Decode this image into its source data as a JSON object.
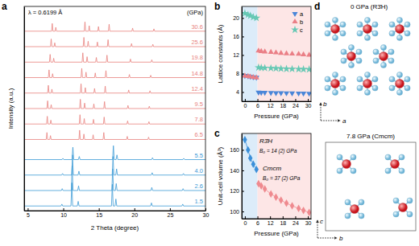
{
  "chart_data": [
    {
      "title": "a",
      "type": "line",
      "xlabel": "2 Theta (degree)",
      "ylabel": "Intensity (a.u.)",
      "xlim": [
        4.5,
        30
      ],
      "ylim": [
        0,
        13.2
      ],
      "xticks": [
        5,
        10,
        15,
        20,
        25,
        30
      ],
      "tick_labels": "x",
      "grid": false,
      "line_style": "solid",
      "annotations": [
        "λ = 0.6199 Å",
        "(GPa)"
      ],
      "series": [
        {
          "name": "1.5",
          "color": "#3c9ad6",
          "x": [
            4.5,
            9.68,
            9.8,
            9.92,
            11.08,
            11.2,
            11.32,
            11.98,
            12.1,
            12.22,
            16.78,
            16.9,
            17.02,
            17.28,
            17.4,
            17.52,
            22.28,
            22.4,
            22.52,
            26.68,
            26.8,
            26.92,
            30
          ],
          "values": [
            0.3,
            0.3,
            0.42,
            0.3,
            0.3,
            1.8,
            0.3,
            0.3,
            0.6,
            0.3,
            0.3,
            1.7,
            0.3,
            0.3,
            0.75,
            0.3,
            0.3,
            0.5,
            0.3,
            0.3,
            0.42,
            0.3,
            0.3
          ]
        },
        {
          "name": "2.6",
          "color": "#3c9ad6",
          "x": [
            4.5,
            9.73,
            9.85,
            9.97,
            11.13,
            11.25,
            11.37,
            12.03,
            12.15,
            12.27,
            16.83,
            16.95,
            17.07,
            17.33,
            17.45,
            17.57,
            22.33,
            22.45,
            22.57,
            26.73,
            26.85,
            26.97,
            30
          ],
          "values": [
            1.3,
            1.3,
            1.42,
            1.3,
            1.3,
            2.9,
            1.3,
            1.3,
            1.6,
            1.3,
            1.3,
            2.7,
            1.3,
            1.3,
            1.75,
            1.3,
            1.3,
            1.5,
            1.3,
            1.3,
            1.42,
            1.3,
            1.3
          ]
        },
        {
          "name": "4.0",
          "color": "#3c9ad6",
          "x": [
            4.5,
            9.78,
            9.9,
            10.02,
            11.18,
            11.3,
            11.42,
            12.08,
            12.2,
            12.32,
            16.88,
            17.0,
            17.12,
            17.38,
            17.5,
            17.62,
            22.38,
            22.5,
            22.62,
            26.78,
            26.9,
            27.02,
            30
          ],
          "values": [
            2.3,
            2.3,
            2.4,
            2.3,
            2.3,
            3.6,
            2.3,
            2.3,
            2.55,
            2.3,
            2.3,
            3.5,
            2.3,
            2.3,
            2.7,
            2.3,
            2.3,
            2.45,
            2.3,
            2.3,
            2.4,
            2.3,
            2.3
          ]
        },
        {
          "name": "5.5",
          "color": "#3c9ad6",
          "x": [
            4.5,
            9.83,
            9.95,
            10.07,
            11.23,
            11.35,
            11.47,
            12.13,
            12.25,
            12.37,
            16.93,
            17.05,
            17.17,
            17.43,
            17.55,
            17.67,
            22.43,
            22.55,
            22.67,
            26.83,
            26.95,
            27.07,
            30
          ],
          "values": [
            3.3,
            3.3,
            3.38,
            3.3,
            3.3,
            4.1,
            3.3,
            3.3,
            3.5,
            3.3,
            3.3,
            4.2,
            3.3,
            3.3,
            3.6,
            3.3,
            3.3,
            3.42,
            3.3,
            3.3,
            3.38,
            3.3,
            3.3
          ]
        },
        {
          "name": "6.5",
          "color": "#e8827e",
          "x": [
            4.5,
            7.6,
            7.7,
            7.8,
            8.1,
            8.2,
            8.3,
            12.2,
            12.3,
            12.4,
            12.8,
            12.9,
            13.0,
            14.1,
            14.2,
            14.3,
            15.6,
            15.7,
            15.8,
            18.9,
            19.0,
            19.1,
            21.9,
            22.0,
            22.1,
            30
          ],
          "values": [
            4.6,
            4.6,
            5.05,
            4.6,
            4.6,
            4.85,
            4.6,
            4.6,
            5.2,
            4.6,
            4.6,
            4.95,
            4.6,
            4.6,
            4.9,
            4.6,
            4.6,
            5.05,
            4.6,
            4.6,
            4.8,
            4.6,
            4.6,
            4.75,
            4.6,
            4.6
          ]
        },
        {
          "name": "7.8",
          "color": "#e8827e",
          "x": [
            4.5,
            7.65,
            7.75,
            7.85,
            8.15,
            8.25,
            8.35,
            12.25,
            12.35,
            12.45,
            12.85,
            12.95,
            13.05,
            14.15,
            14.25,
            14.35,
            15.65,
            15.75,
            15.85,
            18.95,
            19.05,
            19.15,
            21.95,
            22.05,
            22.15,
            30
          ],
          "values": [
            5.6,
            5.6,
            6.1,
            5.6,
            5.6,
            5.85,
            5.6,
            5.6,
            6.2,
            5.6,
            5.6,
            5.95,
            5.6,
            5.6,
            5.9,
            5.6,
            5.6,
            6.05,
            5.6,
            5.6,
            5.8,
            5.6,
            5.6,
            5.75,
            5.6,
            5.6
          ]
        },
        {
          "name": "9.5",
          "color": "#e8827e",
          "x": [
            4.5,
            7.7,
            7.8,
            7.9,
            8.2,
            8.3,
            8.4,
            12.3,
            12.4,
            12.5,
            12.9,
            13.0,
            13.1,
            14.2,
            14.3,
            14.4,
            15.7,
            15.8,
            15.9,
            19.0,
            19.1,
            19.2,
            22.0,
            22.1,
            22.2,
            30
          ],
          "values": [
            6.6,
            6.6,
            7.1,
            6.6,
            6.6,
            6.85,
            6.6,
            6.6,
            7.2,
            6.6,
            6.6,
            6.95,
            6.6,
            6.6,
            6.9,
            6.6,
            6.6,
            7.05,
            6.6,
            6.6,
            6.8,
            6.6,
            6.6,
            6.75,
            6.6,
            6.6
          ]
        },
        {
          "name": "12.4",
          "color": "#e8827e",
          "x": [
            4.5,
            7.8,
            7.9,
            8.0,
            8.3,
            8.4,
            8.5,
            12.4,
            12.5,
            12.6,
            13.0,
            13.1,
            13.2,
            14.3,
            14.4,
            14.5,
            15.8,
            15.9,
            16.0,
            19.1,
            19.2,
            19.3,
            22.1,
            22.2,
            22.3,
            30
          ],
          "values": [
            7.6,
            7.6,
            8.1,
            7.6,
            7.6,
            7.85,
            7.6,
            7.6,
            8.2,
            7.6,
            7.6,
            7.95,
            7.6,
            7.6,
            7.9,
            7.6,
            7.6,
            8.05,
            7.6,
            7.6,
            7.8,
            7.6,
            7.6,
            7.75,
            7.6,
            7.6
          ]
        },
        {
          "name": "14.8",
          "color": "#e8827e",
          "x": [
            4.5,
            7.9,
            8.0,
            8.1,
            8.4,
            8.5,
            8.6,
            12.5,
            12.6,
            12.7,
            13.1,
            13.2,
            13.3,
            14.4,
            14.5,
            14.6,
            15.9,
            16.0,
            16.1,
            19.2,
            19.3,
            19.4,
            22.2,
            22.3,
            22.4,
            30
          ],
          "values": [
            8.6,
            8.6,
            9.1,
            8.6,
            8.6,
            8.85,
            8.6,
            8.6,
            9.2,
            8.6,
            8.6,
            8.95,
            8.6,
            8.6,
            8.9,
            8.6,
            8.6,
            9.05,
            8.6,
            8.6,
            8.8,
            8.6,
            8.6,
            8.75,
            8.6,
            8.6
          ]
        },
        {
          "name": "19.8",
          "color": "#e8827e",
          "x": [
            4.5,
            8.05,
            8.15,
            8.25,
            8.55,
            8.65,
            8.75,
            12.65,
            12.75,
            12.85,
            13.25,
            13.35,
            13.45,
            14.55,
            14.65,
            14.75,
            16.05,
            16.15,
            16.25,
            19.35,
            19.45,
            19.55,
            22.35,
            22.45,
            22.55,
            30
          ],
          "values": [
            9.6,
            9.6,
            10.1,
            9.6,
            9.6,
            9.85,
            9.6,
            9.6,
            10.2,
            9.6,
            9.6,
            9.95,
            9.6,
            9.6,
            9.9,
            9.6,
            9.6,
            10.05,
            9.6,
            9.6,
            9.8,
            9.6,
            9.6,
            9.75,
            9.6,
            9.6
          ]
        },
        {
          "name": "25.6",
          "color": "#e8827e",
          "x": [
            4.5,
            8.2,
            8.3,
            8.4,
            8.7,
            8.8,
            8.9,
            12.8,
            12.9,
            13.0,
            13.4,
            13.5,
            13.6,
            14.7,
            14.8,
            14.9,
            16.2,
            16.3,
            16.4,
            19.5,
            19.6,
            19.7,
            22.5,
            22.6,
            22.7,
            30
          ],
          "values": [
            10.6,
            10.6,
            11.1,
            10.6,
            10.6,
            10.85,
            10.6,
            10.6,
            11.2,
            10.6,
            10.6,
            10.95,
            10.6,
            10.6,
            10.9,
            10.6,
            10.6,
            11.05,
            10.6,
            10.6,
            10.8,
            10.6,
            10.6,
            10.75,
            10.6,
            10.6
          ]
        },
        {
          "name": "30.6",
          "color": "#e8827e",
          "x": [
            4.5,
            8.35,
            8.45,
            8.55,
            8.85,
            8.95,
            9.05,
            12.95,
            13.05,
            13.15,
            13.55,
            13.65,
            13.75,
            14.85,
            14.95,
            15.05,
            16.35,
            16.45,
            16.55,
            19.65,
            19.75,
            19.85,
            22.65,
            22.75,
            22.85,
            30
          ],
          "values": [
            11.6,
            11.6,
            12.1,
            11.6,
            11.6,
            11.85,
            11.6,
            11.6,
            12.2,
            11.6,
            11.6,
            11.95,
            11.6,
            11.6,
            11.9,
            11.6,
            11.6,
            12.05,
            11.6,
            11.6,
            11.8,
            11.6,
            11.6,
            11.75,
            11.6,
            11.6
          ]
        }
      ]
    },
    {
      "title": "b",
      "type": "scatter",
      "xlabel": "Pressure (GPa)",
      "ylabel": "Lattice constants (Å)",
      "xlim": [
        -1.5,
        31.5
      ],
      "ylim": [
        2,
        22.5
      ],
      "xticks": [
        0,
        6,
        12,
        18,
        24,
        30
      ],
      "yticks": [
        4,
        8,
        12,
        16,
        20
      ],
      "grid": false,
      "legend": "upper right",
      "regions": [
        {
          "x0": -1.5,
          "x1": 6,
          "color": "#dcecf9"
        },
        {
          "x0": 6,
          "x1": 31.5,
          "color": "#fde6e6"
        }
      ],
      "x": [
        0,
        1.5,
        2.6,
        4.0,
        5.5,
        6.5,
        7.8,
        9.5,
        12.4,
        14.8,
        17.2,
        19.8,
        22.5,
        25.6,
        27.9,
        30.6
      ],
      "series": [
        {
          "name": "a",
          "color": "#4a86d8",
          "marker": "triangle-down",
          "values": [
            7.55,
            7.45,
            7.35,
            7.25,
            7.15,
            3.95,
            3.9,
            3.88,
            3.85,
            3.82,
            3.8,
            3.78,
            3.76,
            3.74,
            3.72,
            3.7
          ]
        },
        {
          "name": "b",
          "color": "#ea7f86",
          "marker": "triangle-up",
          "values": [
            7.5,
            7.4,
            7.3,
            7.2,
            7.1,
            12.9,
            12.8,
            12.7,
            12.6,
            12.5,
            12.4,
            12.3,
            12.25,
            12.2,
            12.1,
            12.0
          ]
        },
        {
          "name": "c",
          "color": "#66c8b4",
          "marker": "star",
          "values": [
            21.0,
            20.7,
            20.5,
            20.2,
            20.0,
            9.3,
            9.25,
            9.2,
            9.15,
            9.1,
            9.05,
            9.0,
            8.98,
            8.95,
            8.92,
            8.9
          ]
        }
      ]
    },
    {
      "title": "c",
      "type": "line",
      "xlabel": "Pressure (GPa)",
      "ylabel": "Unit-cell volume (Å³)",
      "xlim": [
        -1.5,
        31.5
      ],
      "ylim": [
        93,
        176
      ],
      "xticks": [
        0,
        6,
        12,
        18,
        24,
        30
      ],
      "yticks": [
        100,
        120,
        140,
        160
      ],
      "grid": false,
      "marker": "diamond",
      "line_style": "solid",
      "regions": [
        {
          "x0": -1.5,
          "x1": 6,
          "color": "#dcecf9"
        },
        {
          "x0": 6,
          "x1": 31.5,
          "color": "#fde6e6"
        }
      ],
      "annotations": [
        "B₀ = 14 (2) GPa",
        "B₀ = 37 (2) GPa"
      ],
      "series": [
        {
          "name": "R3̄H",
          "color": "#3b8fd9",
          "x": [
            0,
            1.5,
            2.6,
            4.0,
            5.5
          ],
          "values": [
            170,
            160,
            152,
            146,
            141
          ]
        },
        {
          "name": "Cmcm",
          "color": "#ef8a8f",
          "x": [
            6.5,
            7.8,
            9.5,
            12.4,
            14.8,
            17.2,
            19.8,
            22.5,
            25.6,
            27.9,
            30.6
          ],
          "values": [
            127,
            125,
            122,
            117,
            114,
            111,
            108,
            105.5,
            103,
            101,
            99
          ]
        }
      ]
    }
  ],
  "diagram": {
    "label": "d",
    "structures": [
      {
        "title": "0 GPa (R3̄H)",
        "axes": [
          "b",
          "a"
        ]
      },
      {
        "title": "7.8 GPa (Cmcm)",
        "axes": [
          "c",
          "b"
        ]
      }
    ]
  }
}
